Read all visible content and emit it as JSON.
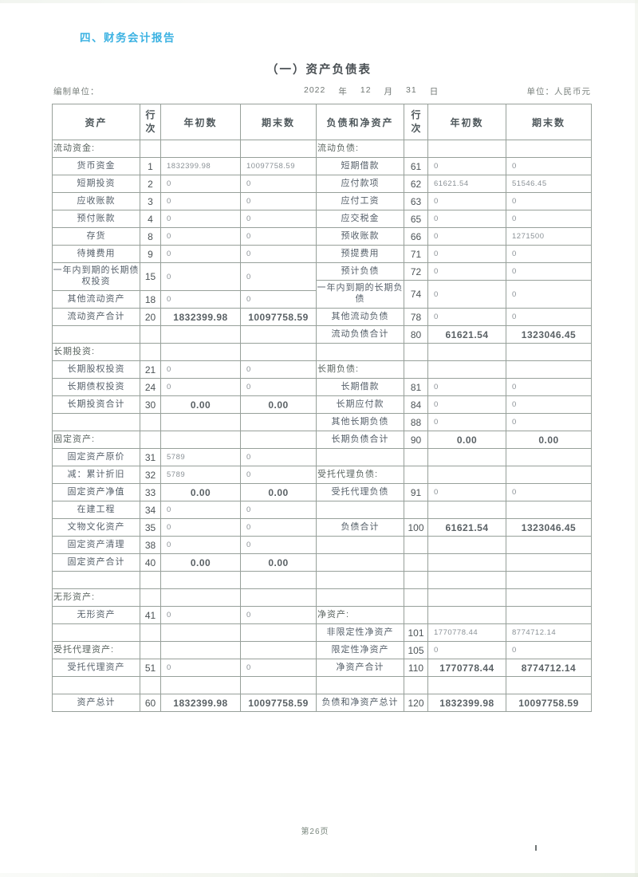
{
  "page": {
    "section_heading": "四、财务会计报告",
    "title": "（一）资产负债表",
    "prepared_by_label": "编制单位：",
    "date": {
      "year": "2022",
      "year_label": "年",
      "month": "12",
      "month_label": "月",
      "day": "31",
      "day_label": "日"
    },
    "unit_label": "单位：人民币元",
    "footer_page": "第26页",
    "accent_color": "#3cb2e2"
  },
  "table": {
    "left": {
      "headers": [
        "资产",
        "行次",
        "年初数",
        "期末数"
      ],
      "rows": [
        {
          "type": "section",
          "label": "流动资金:"
        },
        {
          "type": "item",
          "label": "货币资金",
          "line": "1",
          "begin": "1832399.98",
          "end": "10097758.59"
        },
        {
          "type": "item",
          "label": "短期投资",
          "line": "2",
          "begin": "0",
          "end": "0"
        },
        {
          "type": "item",
          "label": "应收账款",
          "line": "3",
          "begin": "0",
          "end": "0"
        },
        {
          "type": "item",
          "label": "预付账款",
          "line": "4",
          "begin": "0",
          "end": "0"
        },
        {
          "type": "item",
          "label": "存货",
          "line": "8",
          "begin": "0",
          "end": "0"
        },
        {
          "type": "item",
          "label": "待摊费用",
          "line": "9",
          "begin": "0",
          "end": "0"
        },
        {
          "type": "item",
          "tall": true,
          "label": "一年内到期的长期债权投资",
          "line": "15",
          "begin": "0",
          "end": "0"
        },
        {
          "type": "item",
          "label": "其他流动资产",
          "line": "18",
          "begin": "0",
          "end": "0"
        },
        {
          "type": "total",
          "label": "流动资产合计",
          "line": "20",
          "begin": "1832399.98",
          "end": "10097758.59"
        },
        {
          "type": "blank"
        },
        {
          "type": "section",
          "label": "长期投资:"
        },
        {
          "type": "item",
          "label": "长期股权投资",
          "line": "21",
          "begin": "0",
          "end": "0"
        },
        {
          "type": "item",
          "label": "长期债权投资",
          "line": "24",
          "begin": "0",
          "end": "0"
        },
        {
          "type": "total",
          "label": "长期投资合计",
          "line": "30",
          "begin": "0.00",
          "end": "0.00"
        },
        {
          "type": "blank"
        },
        {
          "type": "section",
          "label": "固定资产:"
        },
        {
          "type": "item",
          "label": "固定资产原价",
          "line": "31",
          "begin": "5789",
          "end": "0"
        },
        {
          "type": "item",
          "label": "减：累计折旧",
          "line": "32",
          "begin": "5789",
          "end": "0"
        },
        {
          "type": "total",
          "label": "固定资产净值",
          "line": "33",
          "begin": "0.00",
          "end": "0.00"
        },
        {
          "type": "item",
          "label": "在建工程",
          "line": "34",
          "begin": "0",
          "end": "0"
        },
        {
          "type": "item",
          "label": "文物文化资产",
          "line": "35",
          "begin": "0",
          "end": "0"
        },
        {
          "type": "item",
          "label": "固定资产清理",
          "line": "38",
          "begin": "0",
          "end": "0"
        },
        {
          "type": "total",
          "label": "固定资产合计",
          "line": "40",
          "begin": "0.00",
          "end": "0.00"
        },
        {
          "type": "blank"
        },
        {
          "type": "section",
          "label": "无形资产:"
        },
        {
          "type": "item",
          "label": "无形资产",
          "line": "41",
          "begin": "0",
          "end": "0"
        },
        {
          "type": "blank"
        },
        {
          "type": "section",
          "label": "受托代理资产:"
        },
        {
          "type": "item",
          "label": "受托代理资产",
          "line": "51",
          "begin": "0",
          "end": "0"
        },
        {
          "type": "blank"
        },
        {
          "type": "total",
          "label": "资产总计",
          "line": "60",
          "begin": "1832399.98",
          "end": "10097758.59"
        }
      ]
    },
    "right": {
      "headers": [
        "负债和净资产",
        "行次",
        "年初数",
        "期末数"
      ],
      "rows": [
        {
          "type": "section",
          "label": "流动负债:"
        },
        {
          "type": "item",
          "label": "短期借款",
          "line": "61",
          "begin": "0",
          "end": "0"
        },
        {
          "type": "item",
          "label": "应付款项",
          "line": "62",
          "begin": "61621.54",
          "end": "51546.45"
        },
        {
          "type": "item",
          "label": "应付工资",
          "line": "63",
          "begin": "0",
          "end": "0"
        },
        {
          "type": "item",
          "label": "应交税金",
          "line": "65",
          "begin": "0",
          "end": "0"
        },
        {
          "type": "item",
          "label": "预收账款",
          "line": "66",
          "begin": "0",
          "end": "1271500"
        },
        {
          "type": "item",
          "label": "预提费用",
          "line": "71",
          "begin": "0",
          "end": "0"
        },
        {
          "type": "item",
          "label": "预计负债",
          "line": "72",
          "begin": "0",
          "end": "0"
        },
        {
          "type": "item",
          "tall": true,
          "label": "一年内到期的长期负债",
          "line": "74",
          "begin": "0",
          "end": "0"
        },
        {
          "type": "item",
          "label": "其他流动负债",
          "line": "78",
          "begin": "0",
          "end": "0"
        },
        {
          "type": "total",
          "label": "流动负债合计",
          "line": "80",
          "begin": "61621.54",
          "end": "1323046.45"
        },
        {
          "type": "blank"
        },
        {
          "type": "section",
          "label": "长期负债:"
        },
        {
          "type": "item",
          "label": "长期借款",
          "line": "81",
          "begin": "0",
          "end": "0"
        },
        {
          "type": "item",
          "label": "长期应付款",
          "line": "84",
          "begin": "0",
          "end": "0"
        },
        {
          "type": "item",
          "label": "其他长期负债",
          "line": "88",
          "begin": "0",
          "end": "0"
        },
        {
          "type": "total",
          "label": "长期负债合计",
          "line": "90",
          "begin": "0.00",
          "end": "0.00"
        },
        {
          "type": "blank"
        },
        {
          "type": "section",
          "label": "受托代理负债:"
        },
        {
          "type": "item",
          "label": "受托代理负债",
          "line": "91",
          "begin": "0",
          "end": "0"
        },
        {
          "type": "blank"
        },
        {
          "type": "total",
          "label": "负债合计",
          "line": "100",
          "begin": "61621.54",
          "end": "1323046.45"
        },
        {
          "type": "blank"
        },
        {
          "type": "blank"
        },
        {
          "type": "blank"
        },
        {
          "type": "blank"
        },
        {
          "type": "section",
          "label": "净资产:"
        },
        {
          "type": "item",
          "label": "非限定性净资产",
          "line": "101",
          "begin": "1770778.44",
          "end": "8774712.14"
        },
        {
          "type": "item",
          "label": "限定性净资产",
          "line": "105",
          "begin": "0",
          "end": "0"
        },
        {
          "type": "total",
          "label": "净资产合计",
          "line": "110",
          "begin": "1770778.44",
          "end": "8774712.14"
        },
        {
          "type": "blank"
        },
        {
          "type": "total",
          "label": "负债和净资产总计",
          "line": "120",
          "begin": "1832399.98",
          "end": "10097758.59"
        }
      ]
    }
  }
}
